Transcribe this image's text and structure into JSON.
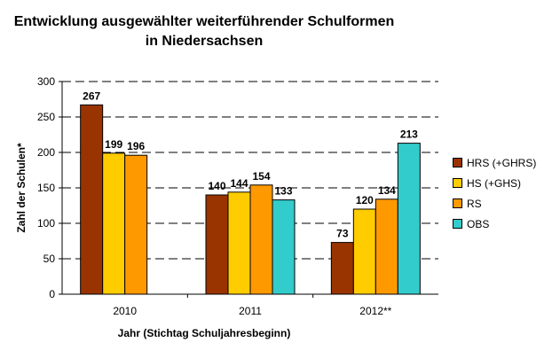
{
  "chart_data": {
    "type": "bar",
    "title": "Entwicklung ausgewählter weiterführender Schulformen\nin Niedersachsen",
    "xlabel": "Jahr (Stichtag Schuljahresbeginn)",
    "ylabel": "Zahl der Schulen*",
    "ylim": [
      0,
      300
    ],
    "yticks": [
      0,
      50,
      100,
      150,
      200,
      250,
      300
    ],
    "grid": true,
    "legend_position": "right",
    "categories": [
      "2010",
      "2011",
      "2012**"
    ],
    "series": [
      {
        "name": "HRS (+GHRS)",
        "color": "#993300",
        "values": [
          267,
          140,
          73
        ]
      },
      {
        "name": "HS (+GHS)",
        "color": "#ffcc00",
        "values": [
          199,
          144,
          120
        ]
      },
      {
        "name": "RS",
        "color": "#ff9900",
        "values": [
          196,
          154,
          134
        ]
      },
      {
        "name": "OBS",
        "color": "#33cccc",
        "values": [
          null,
          133,
          213
        ]
      }
    ]
  }
}
